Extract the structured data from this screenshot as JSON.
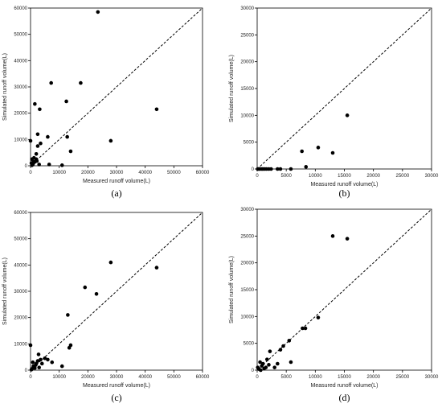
{
  "chart_data": [
    {
      "type": "scatter",
      "panel_label": "(a)",
      "xlabel": "Measured runoff volume(L)",
      "ylabel": "Simulated runoff volume(L)",
      "xlim": [
        0,
        60000
      ],
      "ylim": [
        0,
        60000
      ],
      "xticks": [
        "0",
        "10000",
        "20000",
        "30000",
        "40000",
        "50000",
        "60000"
      ],
      "yticks": [
        "0",
        "10000",
        "20000",
        "30000",
        "40000",
        "50000",
        "60000"
      ],
      "reference_line": "1:1 dashed",
      "grid": false,
      "series": [
        {
          "x": [
            0,
            300,
            500,
            800,
            1000,
            1200,
            1500,
            2000,
            2500,
            3000,
            1500,
            500,
            1000,
            2000,
            2500,
            3500,
            6000,
            3200,
            2200,
            6500,
            7200,
            11000,
            12500,
            12800,
            14000,
            17500,
            23500,
            28000,
            44000
          ],
          "y": [
            9500,
            1000,
            2500,
            500,
            1500,
            3000,
            23500,
            4500,
            12000,
            500,
            1500,
            200,
            1000,
            2500,
            7500,
            8500,
            11000,
            21500,
            1800,
            500,
            31500,
            200,
            24500,
            11000,
            5500,
            31500,
            58500,
            9500,
            21500
          ]
        }
      ]
    },
    {
      "type": "scatter",
      "panel_label": "(b)",
      "xlabel": "Measured runoff volume(L)",
      "ylabel": "Simulated runoff volume(L)",
      "xlim": [
        0,
        30000
      ],
      "ylim": [
        0,
        30000
      ],
      "xticks": [
        "0",
        "5000",
        "10000",
        "15000",
        "20000",
        "25000",
        "30000"
      ],
      "yticks": [
        "0",
        "5000",
        "10000",
        "15000",
        "20000",
        "25000",
        "30000"
      ],
      "reference_line": "1:1 dashed",
      "grid": false,
      "series": [
        {
          "x": [
            100,
            300,
            500,
            800,
            1000,
            1300,
            1600,
            2000,
            2400,
            3500,
            4000,
            5800,
            7700,
            8400,
            10500,
            13000,
            15500
          ],
          "y": [
            0,
            0,
            0,
            0,
            0,
            0,
            0,
            0,
            0,
            0,
            0,
            0,
            3300,
            400,
            4000,
            3000,
            10000
          ]
        }
      ]
    },
    {
      "type": "scatter",
      "panel_label": "(c)",
      "xlabel": "Measured runoff volume(L)",
      "ylabel": "Simulated runoff volume(L)",
      "xlim": [
        0,
        60000
      ],
      "ylim": [
        0,
        60000
      ],
      "xticks": [
        "0",
        "10000",
        "20000",
        "30000",
        "40000",
        "50000",
        "60000"
      ],
      "yticks": [
        "0",
        "10000",
        "20000",
        "30000",
        "40000",
        "50000",
        "60000"
      ],
      "reference_line": "1:1 dashed",
      "grid": false,
      "series": [
        {
          "x": [
            0,
            300,
            500,
            800,
            1000,
            1500,
            1800,
            2000,
            2500,
            2800,
            3000,
            3500,
            4000,
            5000,
            6000,
            7500,
            11000,
            13000,
            13500,
            14000,
            19000,
            23000,
            28000,
            44000
          ],
          "y": [
            9500,
            200,
            500,
            3000,
            1500,
            800,
            2000,
            2500,
            3500,
            6000,
            1000,
            4000,
            2500,
            4500,
            4000,
            3000,
            1500,
            21000,
            8500,
            9500,
            31500,
            29000,
            41000,
            39000
          ]
        }
      ]
    },
    {
      "type": "scatter",
      "panel_label": "(d)",
      "xlabel": "Measured runoff volume(L)",
      "ylabel": "Simulated runoff volume(L)",
      "xlim": [
        0,
        30000
      ],
      "ylim": [
        0,
        30000
      ],
      "xticks": [
        "0",
        "5000",
        "10000",
        "15000",
        "20000",
        "25000",
        "30000"
      ],
      "yticks": [
        "0",
        "5000",
        "10000",
        "15000",
        "20000",
        "25000",
        "30000"
      ],
      "reference_line": "1:1 dashed",
      "grid": false,
      "series": [
        {
          "x": [
            100,
            300,
            500,
            600,
            800,
            1000,
            1200,
            1500,
            1700,
            2000,
            2200,
            3000,
            3500,
            4000,
            4500,
            5500,
            5800,
            7800,
            8300,
            10500,
            13000,
            15500
          ],
          "y": [
            500,
            200,
            1500,
            0,
            800,
            1200,
            300,
            500,
            2000,
            1000,
            3500,
            500,
            1200,
            3800,
            4500,
            5500,
            1500,
            7800,
            7800,
            9800,
            25000,
            24500
          ]
        }
      ]
    }
  ]
}
